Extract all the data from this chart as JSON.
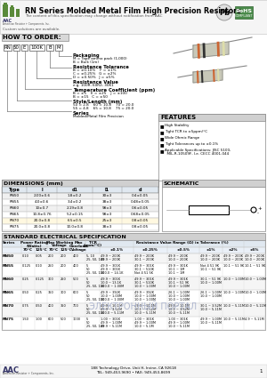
{
  "title": "RN Series Molded Metal Film High Precision Resistors",
  "subtitle": "The content of this specification may change without notification from AAC",
  "subtitle2": "Custom solutions are available.",
  "how_to_order_label": "HOW TO ORDER:",
  "order_codes": [
    "RN",
    "50",
    "E",
    "100K",
    "B",
    "M"
  ],
  "features_title": "FEATURES",
  "features": [
    "High Stability",
    "Tight TCR to ±5ppm/°C",
    "Wide Ohmic Range",
    "Tight Tolerances up to ±0.1%",
    "Applicable Specifications: JISC 5100,\n  MIL-R-10509F, I.e. CECC 4001-044"
  ],
  "dimensions_title": "DIMENSIONS (mm)",
  "dim_headers": [
    "Type",
    "l",
    "d1",
    "l1",
    "d"
  ],
  "dim_rows": [
    [
      "RN50",
      "2.00±0.6",
      "1.8±0.2",
      "30±3",
      "0.4±0.05"
    ],
    [
      "RN55",
      "4.0±0.6",
      "3.4±0.2",
      "38±3",
      "0.48±0.05"
    ],
    [
      "RN60",
      "10±0.7",
      "2.19±0.8",
      "98±3",
      "0.6±0.05"
    ],
    [
      "RN65",
      "10.8±0.76",
      "5.2±0.15",
      "98±3",
      "0.68±0.05"
    ],
    [
      "RN70",
      "20.0±0.8",
      "6.5±0.5",
      "25±3",
      "0.8±0.05"
    ],
    [
      "RN75",
      "20.0±0.8",
      "10.0±0.8",
      "38±3",
      "0.8±0.05"
    ]
  ],
  "dim_highlight_row": 4,
  "schematic_title": "SCHEMATIC",
  "spec_title": "STANDARD ELECTRICAL SPECIFICATION",
  "spec_rows": [
    {
      "name": "RN50",
      "p70": "0.10",
      "p125": "0.05",
      "v70": "200",
      "v125": "200",
      "ov": "400",
      "tcr": "5, 10\n25, 50, 100",
      "r01": "49.9 ~ 200K\n49.9 ~ 200K",
      "r025": "49.9 ~ 200K\n30.1 ~ 200K",
      "r05": "49.9 ~ 200K\n10.0 ~ 200K",
      "r1": "49.9 ~ 200K\n10.0 ~ 200K",
      "r2": "49.9 ~ 200K\n10.0 ~ 200K",
      "r5": "49.9 ~ 200K\n10.0 ~ 200K"
    },
    {
      "name": "RN55",
      "p70": "0.125",
      "p125": "0.10",
      "v70": "250",
      "v125": "200",
      "ov": "400",
      "tcr": "5\n50\n25, 50, 100",
      "r01": "49.9 ~ 301K\n49.9 ~ 301K\n100.0 ~ 14.1K",
      "r025": "49.9 ~ 301K\n30.1 ~ 510K\nNot 4 51 5K",
      "r05": "49.9 ~ 301K\n10.1 ~ 1M\n10.1 ~ 1M",
      "r1": "Not 4 51 9K\n10.1 ~ 51 9K",
      "r2": "10.1 ~ 51 9K",
      "r5": "10.1 ~ 51 9K"
    },
    {
      "name": "RN60",
      "p70": "0.25",
      "p125": "0.125",
      "v70": "300",
      "v125": "250",
      "ov": "500",
      "tcr": "5\n50\n25, 50, 100",
      "r01": "49.9 ~ 301K\n10.0 ~ 13.1K\n100.0 ~ 1.00M",
      "r025": "49.9 ~ 301K\n30.1 ~ 510K\n10.0 ~ 1.00M",
      "r05": "49.9 ~ 301K\n10.1 ~ 51 9K\n10.0 ~ 1.00M",
      "r1": "30.1 ~ 51 9K\n10.0 ~ 1.00M",
      "r2": "10.0 ~ 1.00M",
      "r5": "10.0 ~ 1.00M"
    },
    {
      "name": "RN65",
      "p70": "0.50",
      "p125": "0.25",
      "v70": "350",
      "v125": "300",
      "ov": "600",
      "tcr": "5\n50\n25, 50, 100",
      "r01": "49.9 ~ 392K\n10.0 ~ 1.00M\n100.0 ~ 1.00M",
      "r025": "49.9 ~ 392K\n10.0 ~ 1.00M\n10.0 ~ 1.00M",
      "r05": "26.1 ~ 1.00M\n10.0 ~ 1.00M\n10.0 ~ 1.00M",
      "r1": "26.1 ~ 1.00M\n10.0 ~ 1.00M",
      "r2": "10.0 ~ 1.00M",
      "r5": "10.0 ~ 1.00M"
    },
    {
      "name": "RN70",
      "p70": "0.75",
      "p125": "0.50",
      "v70": "400",
      "v125": "350",
      "ov": "700",
      "tcr": "5\n50\n25, 50, 100",
      "r01": "49.9 ~ 10.1M\n49.9 ~ 3.52M\n100.0 ~ 5.11M",
      "r025": "49.9 ~ 10.1M\n30.1 ~ 3.52M\n10.0 ~ 5.11M",
      "r05": "49.9 ~ 10.1M\n10.1 ~ 3.52M\n10.0 ~ 5.11M",
      "r1": "30.1 ~ 3.52M\n10.0 ~ 5.11M",
      "r2": "10.0 ~ 5.11M",
      "r5": "10.0 ~ 5.11M"
    },
    {
      "name": "RN75",
      "p70": "1.50",
      "p125": "1.00",
      "v70": "600",
      "v125": "500",
      "ov": "1000",
      "tcr": "5\n50\n25, 50, 100",
      "r01": "1.00 ~ 301K\n49.9 ~ 1.00M\n49.9 ~ 5.11M",
      "r025": "1.00 ~ 301K\n49.9 ~ 1.00M\n10.0 ~ 5.1M",
      "r05": "1.00 ~ 301K\n49.9 ~ 1.00M\n10.0 ~ 5.11M",
      "r1": "49.9 ~ 1.00M\n10.0 ~ 5.11M",
      "r2": "10.0 ~ 5.11M",
      "r5": "4.9 ~ 5.11M"
    }
  ],
  "footer_line1": "188 Technology Drive, Unit H, Irvine, CA 92618",
  "footer_line2": "TEL: 949-453-9690 • FAX: 949-453-8699"
}
